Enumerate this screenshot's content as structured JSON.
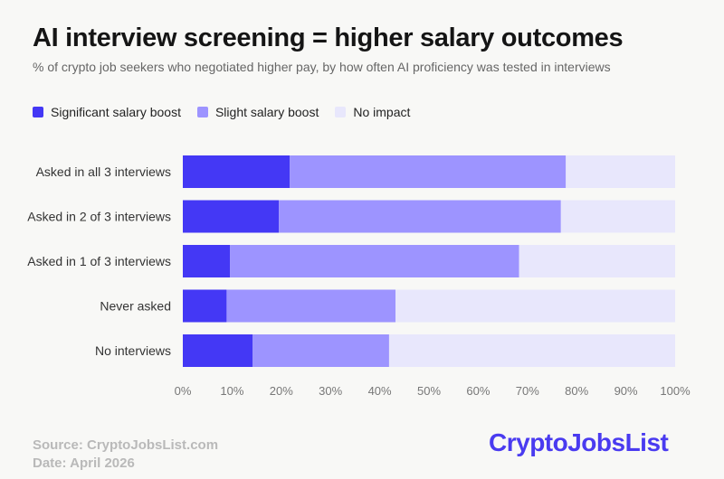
{
  "header": {
    "title": "AI interview screening = higher salary outcomes",
    "subtitle": "% of crypto job seekers who negotiated higher pay, by how often AI proficiency was tested in interviews"
  },
  "legend": [
    {
      "label": "Significant salary boost",
      "color": "#4438f5"
    },
    {
      "label": "Slight salary boost",
      "color": "#9d94ff"
    },
    {
      "label": "No impact",
      "color": "#e8e7fc"
    }
  ],
  "chart_data": {
    "type": "bar",
    "orientation": "horizontal",
    "stacked": true,
    "categories": [
      "Asked in all 3 interviews",
      "Asked in 2 of 3 interviews",
      "Asked in 1 of 3 interviews",
      "Never asked",
      "No interviews"
    ],
    "series": [
      {
        "name": "Significant salary boost",
        "values": [
          21.7,
          19.5,
          9.6,
          8.9,
          14.2
        ],
        "color": "#4438f5"
      },
      {
        "name": "Slight salary boost",
        "values": [
          56.1,
          57.3,
          58.7,
          34.3,
          27.7
        ],
        "color": "#9d94ff"
      },
      {
        "name": "No impact",
        "values": [
          22.2,
          23.2,
          31.7,
          56.8,
          58.1
        ],
        "color": "#e8e7fc"
      }
    ],
    "xlim": [
      0,
      100
    ],
    "x_ticks": [
      "0%",
      "10%",
      "20%",
      "30%",
      "40%",
      "50%",
      "60%",
      "70%",
      "80%",
      "90%",
      "100%"
    ],
    "grid": false,
    "legend_position": "top-left"
  },
  "footer": {
    "source": "Source: CryptoJobsList.com",
    "date": "Date: April 2026"
  },
  "brand": {
    "logo_text": "CryptoJobsList",
    "color": "#4a3bf0"
  }
}
